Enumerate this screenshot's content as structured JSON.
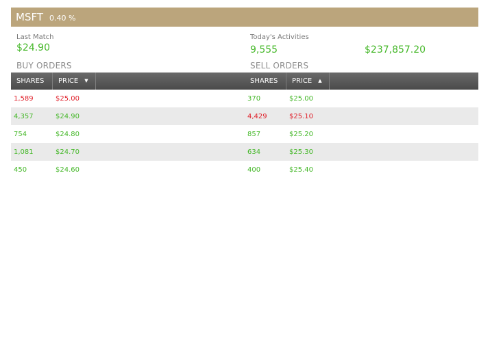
{
  "header": {
    "symbol": "MSFT",
    "change": "0.40 %",
    "bg_color": "#bba57c"
  },
  "stats": {
    "last_match_label": "Last Match",
    "last_match_value": "$24.90",
    "activities_label": "Today's Activities",
    "activities_shares": "9,555",
    "activities_value": "$237,857.20"
  },
  "buy": {
    "title": "BUY ORDERS",
    "col_shares": "SHARES",
    "col_price": "PRICE",
    "sort_icon": "sort-descending-icon",
    "rows": [
      {
        "shares": "1,589",
        "price": "$25.00",
        "color": "red"
      },
      {
        "shares": "4,357",
        "price": "$24.90",
        "color": "green"
      },
      {
        "shares": "754",
        "price": "$24.80",
        "color": "green"
      },
      {
        "shares": "1,081",
        "price": "$24.70",
        "color": "green"
      },
      {
        "shares": "450",
        "price": "$24.60",
        "color": "green"
      }
    ]
  },
  "sell": {
    "title": "SELL ORDERS",
    "col_shares": "SHARES",
    "col_price": "PRICE",
    "sort_icon": "sort-ascending-icon",
    "rows": [
      {
        "shares": "370",
        "price": "$25.00",
        "color": "green"
      },
      {
        "shares": "4,429",
        "price": "$25.10",
        "color": "red"
      },
      {
        "shares": "857",
        "price": "$25.20",
        "color": "green"
      },
      {
        "shares": "634",
        "price": "$25.30",
        "color": "green"
      },
      {
        "shares": "400",
        "price": "$25.40",
        "color": "green"
      }
    ]
  },
  "colors": {
    "positive": "#46b82a",
    "negative": "#e0212b"
  }
}
